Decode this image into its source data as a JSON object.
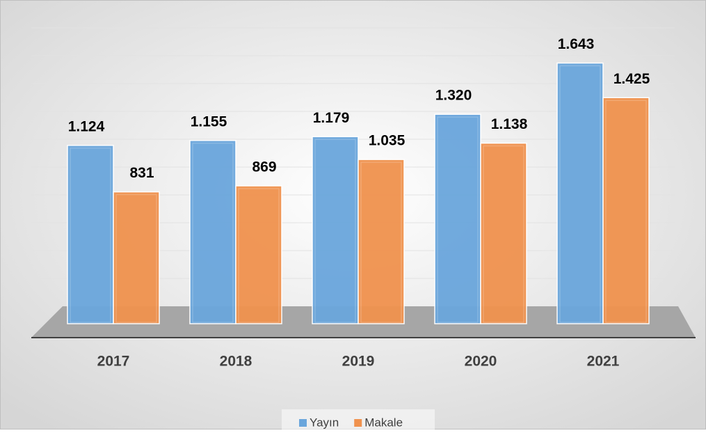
{
  "chart_data": {
    "type": "bar3d",
    "categories": [
      "2017",
      "2018",
      "2019",
      "2020",
      "2021"
    ],
    "series": [
      {
        "name": "Yayın",
        "color": "#6aa6dc",
        "values": [
          1124,
          1155,
          1179,
          1320,
          1643
        ],
        "value_labels": [
          "1.124",
          "1.155",
          "1.179",
          "1.320",
          "1.643"
        ]
      },
      {
        "name": "Makale",
        "color": "#f0924e",
        "values": [
          831,
          869,
          1035,
          1138,
          1425
        ],
        "value_labels": [
          "831",
          "869",
          "1.035",
          "1.138",
          "1.425"
        ]
      }
    ],
    "ylim": [
      0,
      1900
    ]
  }
}
